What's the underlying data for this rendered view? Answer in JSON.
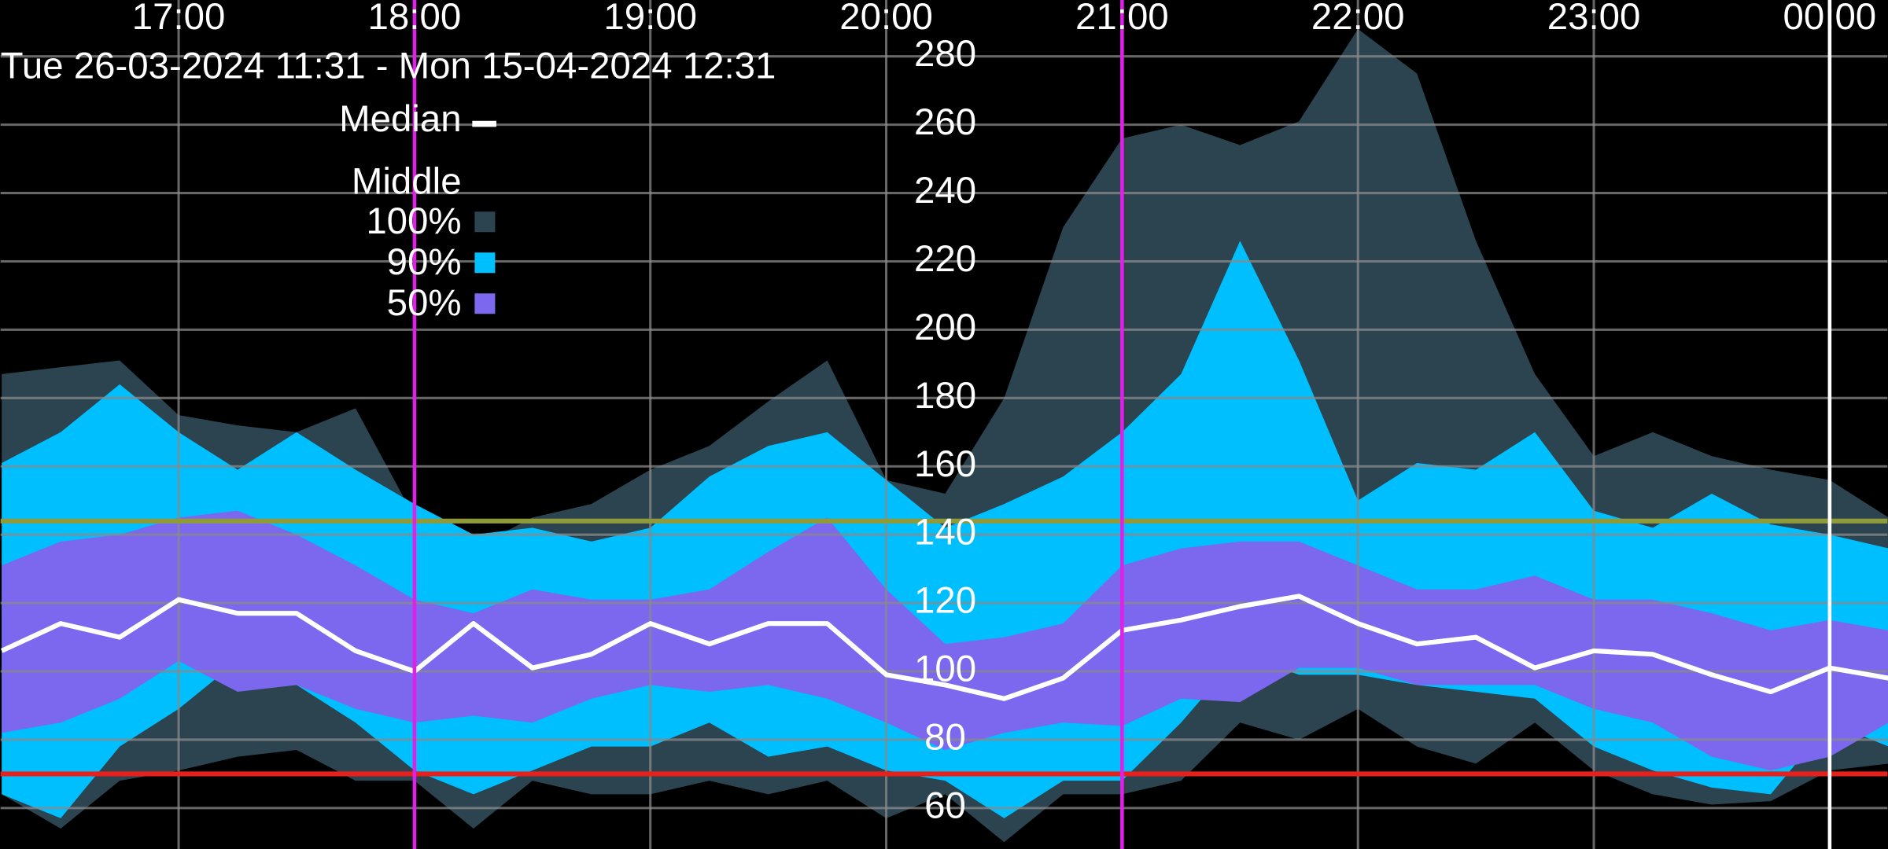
{
  "chart_data": {
    "type": "band",
    "title": "Tue 26-03-2024 11:31 - Mon 15-04-2024 12:31",
    "legend_heading": "Middle",
    "x": [
      16.25,
      16.5,
      16.75,
      17,
      17.25,
      17.5,
      17.75,
      18,
      18.25,
      18.5,
      18.75,
      19,
      19.25,
      19.5,
      19.75,
      20,
      20.25,
      20.5,
      20.75,
      21,
      21.25,
      21.5,
      21.75,
      22,
      22.25,
      22.5,
      22.75,
      23,
      23.25,
      23.5,
      23.75,
      24,
      24.25
    ],
    "xlim": [
      16.245,
      24.245
    ],
    "xticks": [
      {
        "value": 17,
        "label": "17:00"
      },
      {
        "value": 18,
        "label": "18:00"
      },
      {
        "value": 19,
        "label": "19:00"
      },
      {
        "value": 20,
        "label": "20:00"
      },
      {
        "value": 21,
        "label": "21:00"
      },
      {
        "value": 22,
        "label": "22:00"
      },
      {
        "value": 23,
        "label": "23:00"
      },
      {
        "value": 24,
        "label": "00:00"
      }
    ],
    "ylim": [
      48,
      296.5
    ],
    "yticks": [
      60,
      80,
      100,
      120,
      140,
      160,
      180,
      200,
      220,
      240,
      260,
      280
    ],
    "grid": true,
    "series": [
      {
        "name": "100%",
        "color": "#2c4450",
        "high": [
          187,
          189,
          191,
          175,
          172,
          170,
          177,
          145,
          136,
          145,
          149,
          159,
          166,
          179,
          191,
          156,
          152,
          180,
          230,
          256,
          260,
          254,
          261,
          288,
          275,
          226,
          187,
          163,
          170,
          163,
          159,
          156,
          145
        ],
        "low": [
          64,
          54,
          68,
          71,
          75,
          77,
          68,
          68,
          54,
          68,
          64,
          64,
          68,
          64,
          68,
          57,
          64,
          50,
          64,
          64,
          68,
          85,
          80,
          89,
          78,
          73,
          85,
          71,
          64,
          61,
          62,
          71,
          73
        ]
      },
      {
        "name": "90%",
        "color": "#00bfff",
        "high": [
          161,
          170,
          184,
          170,
          159,
          170,
          159,
          149,
          140,
          142,
          138,
          142,
          157,
          166,
          170,
          156,
          142,
          149,
          157,
          170,
          187,
          226,
          191,
          150,
          161,
          159,
          170,
          147,
          142,
          152,
          143,
          140,
          136
        ],
        "low": [
          64,
          57,
          78,
          89,
          103,
          96,
          85,
          71,
          64,
          71,
          78,
          78,
          85,
          75,
          78,
          71,
          68,
          57,
          68,
          68,
          85,
          105,
          99,
          99,
          96,
          94,
          92,
          78,
          71,
          66,
          64,
          85,
          78
        ]
      },
      {
        "name": "50%",
        "color": "#7b68ee",
        "high": [
          131,
          138,
          140,
          145,
          147,
          140,
          131,
          121,
          117,
          124,
          121,
          121,
          124,
          135,
          145,
          124,
          108,
          110,
          114,
          131,
          136,
          138,
          138,
          131,
          124,
          124,
          128,
          121,
          121,
          117,
          112,
          115,
          112
        ],
        "low": [
          82,
          85,
          92,
          103,
          94,
          96,
          89,
          85,
          87,
          85,
          92,
          96,
          94,
          96,
          92,
          85,
          77,
          82,
          85,
          84,
          92,
          91,
          101,
          101,
          96,
          96,
          96,
          89,
          85,
          75,
          71,
          75,
          85
        ]
      }
    ],
    "median": {
      "name": "Median",
      "color": "#ffffff",
      "values": [
        106,
        114,
        110,
        121,
        117,
        117,
        106,
        100,
        114,
        101,
        105,
        114,
        108,
        114,
        114,
        99,
        96,
        92,
        98,
        112,
        115,
        119,
        122,
        114,
        108,
        110,
        101,
        106,
        105,
        99,
        94,
        101,
        98
      ]
    },
    "thresholds": [
      {
        "value": 70,
        "color": "#e8201c"
      },
      {
        "value": 144,
        "color": "#8f9a3a"
      }
    ],
    "markers": [
      {
        "x": 18,
        "color": "#e020e8"
      },
      {
        "x": 21,
        "color": "#e020e8"
      },
      {
        "x": 24,
        "color": "#ffffff"
      }
    ]
  }
}
